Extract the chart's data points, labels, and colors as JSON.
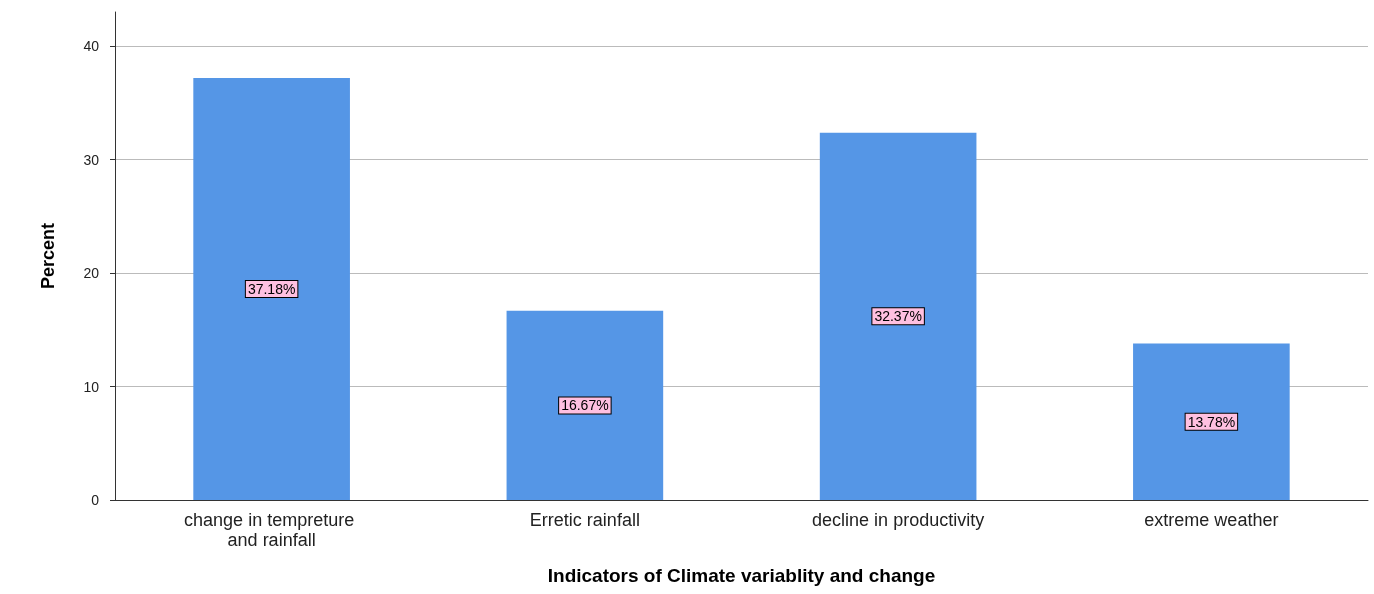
{
  "chart_data": {
    "type": "bar",
    "xlabel": "Indicators of Climate variablity and change",
    "ylabel": "Percent",
    "categories": [
      "change in tempreture and rainfall",
      "Erretic rainfall",
      "decline in productivity",
      "extreme weather"
    ],
    "values": [
      37.18,
      16.67,
      32.37,
      13.78
    ],
    "color": "#5596e6",
    "value_labels": [
      "37.18%",
      "16.67%",
      "32.37%",
      "13.78%"
    ],
    "ylim": [
      0,
      43
    ],
    "yticks": [
      0,
      10,
      20,
      30,
      40
    ],
    "grid": "y"
  }
}
